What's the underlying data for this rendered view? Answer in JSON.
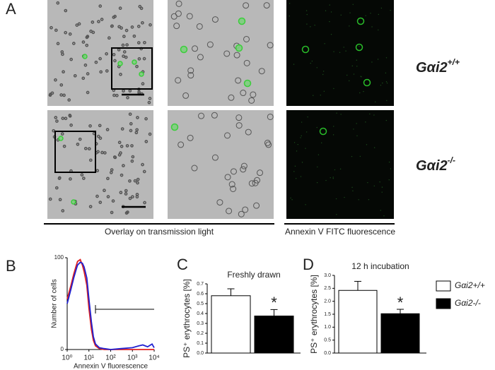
{
  "figure": {
    "panel_labels": [
      "A",
      "B",
      "C",
      "D"
    ],
    "genotypes": [
      {
        "base": "Gαi2",
        "sup": "+/+"
      },
      {
        "base": "Gαi2",
        "sup": "-/-"
      }
    ],
    "captions": [
      "Overlay on transmission light",
      "Annexin V FITC fluorescence"
    ]
  },
  "chart_data": [
    {
      "type": "line",
      "log_x": true,
      "xlabel": "Annexin V fluorescence",
      "ylabel": "Number of cells",
      "x": [
        1,
        1.5,
        2,
        2.5,
        3,
        4,
        5,
        6,
        8,
        10,
        13,
        16,
        20,
        30,
        50,
        100,
        300,
        1000,
        2000,
        3000,
        5000,
        8000,
        10000
      ],
      "series": [
        {
          "color": "#e02020",
          "values": [
            55,
            70,
            82,
            90,
            96,
            98,
            92,
            85,
            70,
            45,
            22,
            10,
            4,
            1,
            0,
            0,
            0,
            0,
            0,
            0,
            0,
            0,
            0
          ]
        },
        {
          "color": "#2020d0",
          "values": [
            50,
            66,
            78,
            86,
            92,
            95,
            94,
            90,
            78,
            55,
            30,
            14,
            6,
            2,
            1,
            0,
            1,
            2,
            4,
            5,
            3,
            6,
            2
          ]
        }
      ],
      "xlim": [
        1,
        10000
      ],
      "xticks": [
        {
          "value": 1,
          "label": "10⁰"
        },
        {
          "value": 10,
          "label": "10¹"
        },
        {
          "value": 100,
          "label": "10²"
        },
        {
          "value": 1000,
          "label": "10³"
        },
        {
          "value": 10000,
          "label": "10⁴"
        }
      ],
      "ylim": [
        0,
        100
      ],
      "yticks": [
        0,
        100
      ],
      "marker_x": [
        20,
        10000
      ]
    },
    {
      "type": "bar",
      "title": "Freshly drawn",
      "ylabel": "PS⁺ erythrocytes [%]",
      "series": [
        {
          "color": "#ffffff",
          "values": [
            0.58
          ],
          "errors": [
            0.07
          ]
        },
        {
          "color": "#000000",
          "values": [
            0.375
          ],
          "errors": [
            0.065
          ]
        }
      ],
      "ylim": [
        0,
        0.7
      ],
      "yticks": [
        {
          "value": 0,
          "label": "0.0"
        },
        0.1,
        0.2,
        0.3,
        0.4,
        0.5,
        0.6,
        0.7
      ],
      "annotation": "*"
    },
    {
      "type": "bar",
      "title": "12 h incubation",
      "ylabel": "PS⁺ erythrocytes [%]",
      "series": [
        {
          "name": "Gαi2+/+",
          "color": "#ffffff",
          "values": [
            2.42
          ],
          "errors": [
            0.35
          ]
        },
        {
          "name": "Gαi2-/-",
          "color": "#000000",
          "values": [
            1.52
          ],
          "errors": [
            0.17
          ]
        }
      ],
      "ylim": [
        0,
        3.0
      ],
      "yticks": [
        {
          "value": 0,
          "label": "0.0"
        },
        0.5,
        {
          "value": 1,
          "label": "1.0"
        },
        1.5,
        {
          "value": 2,
          "label": "2.0"
        },
        2.5,
        {
          "value": 3,
          "label": "3.0"
        }
      ],
      "annotation": "*"
    }
  ]
}
